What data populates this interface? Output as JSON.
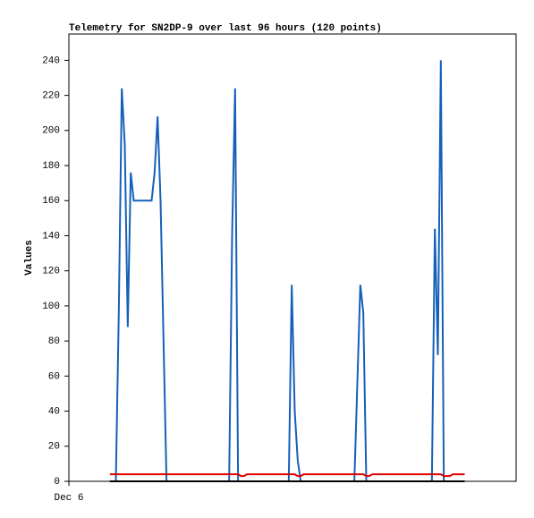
{
  "chart_data": {
    "type": "line",
    "title": "Telemetry for SN2DP-9 over last 96 hours (120 points)",
    "y_label": "Values",
    "xlim": [
      0,
      120
    ],
    "xticks": [
      {
        "value": 0,
        "label": "Dec 6"
      }
    ],
    "ylim": [
      0,
      255
    ],
    "yticks": [
      0,
      20,
      40,
      60,
      80,
      100,
      120,
      140,
      160,
      180,
      200,
      220,
      240
    ],
    "grid": false,
    "x": [
      11,
      11.8,
      12.6,
      13.4,
      14.2,
      15,
      15.8,
      16.6,
      17.4,
      18.2,
      19,
      19.8,
      20.6,
      21.4,
      22.2,
      23,
      23.8,
      24.6,
      25.4,
      26.2,
      27,
      27.8,
      28.6,
      29.4,
      30.2,
      31,
      31.8,
      32.6,
      33.4,
      34.2,
      35,
      35.8,
      36.6,
      37.4,
      38.2,
      39,
      39.8,
      40.6,
      41.4,
      42.2,
      43,
      43.8,
      44.6,
      45.4,
      46.2,
      47,
      47.8,
      48.6,
      49.4,
      50.2,
      51,
      51.8,
      52.6,
      53.4,
      54.2,
      55,
      55.8,
      56.6,
      57.4,
      58.2,
      59,
      59.8,
      60.6,
      61.4,
      62.2,
      63,
      63.8,
      64.6,
      65.4,
      66.2,
      67,
      67.8,
      68.6,
      69.4,
      70.2,
      71,
      71.8,
      72.6,
      73.4,
      74.2,
      75,
      75.8,
      76.6,
      77.4,
      78.2,
      79,
      79.8,
      80.6,
      81.4,
      82.2,
      83,
      83.8,
      84.6,
      85.4,
      86.2,
      87,
      87.8,
      88.6,
      89.4,
      90.2,
      91,
      91.8,
      92.6,
      93.4,
      94.2,
      95,
      95.8,
      96.6,
      97.4,
      98.2,
      99,
      99.8,
      100.6,
      101.4,
      102.2,
      103,
      103.8,
      104.6,
      105.4,
      106.2
    ],
    "series": [
      {
        "name": "blue",
        "color": "#1560b8",
        "values": [
          0,
          0,
          0,
          97,
          224,
          192,
          88,
          176,
          160,
          160,
          160,
          160,
          160,
          160,
          160,
          176,
          208,
          160,
          80,
          0,
          0,
          0,
          0,
          0,
          0,
          0,
          0,
          0,
          0,
          0,
          0,
          0,
          0,
          0,
          0,
          0,
          0,
          0,
          0,
          0,
          0,
          140,
          224,
          0,
          0,
          0,
          0,
          0,
          0,
          0,
          0,
          0,
          0,
          0,
          0,
          0,
          0,
          0,
          0,
          0,
          0,
          112,
          40,
          12,
          0,
          0,
          0,
          0,
          0,
          0,
          0,
          0,
          0,
          0,
          0,
          0,
          0,
          0,
          0,
          0,
          0,
          0,
          0,
          56,
          112,
          96,
          0,
          0,
          0,
          0,
          0,
          0,
          0,
          0,
          0,
          0,
          0,
          0,
          0,
          0,
          0,
          0,
          0,
          0,
          0,
          0,
          0,
          0,
          0,
          144,
          72,
          240,
          0,
          0,
          0,
          0,
          0,
          0,
          0,
          0
        ]
      },
      {
        "name": "red",
        "color": "#e00000",
        "values": [
          4,
          4,
          4,
          4,
          4,
          4,
          4,
          4,
          4,
          4,
          4,
          4,
          4,
          4,
          4,
          4,
          4,
          4,
          4,
          4,
          4,
          4,
          4,
          4,
          4,
          4,
          4,
          4,
          4,
          4,
          4,
          4,
          4,
          4,
          4,
          4,
          4,
          4,
          4,
          4,
          4,
          4,
          4,
          4,
          3,
          3,
          4,
          4,
          4,
          4,
          4,
          4,
          4,
          4,
          4,
          4,
          4,
          4,
          4,
          4,
          4,
          4,
          4,
          3,
          3,
          4,
          4,
          4,
          4,
          4,
          4,
          4,
          4,
          4,
          4,
          4,
          4,
          4,
          4,
          4,
          4,
          4,
          4,
          4,
          4,
          4,
          3,
          3,
          4,
          4,
          4,
          4,
          4,
          4,
          4,
          4,
          4,
          4,
          4,
          4,
          4,
          4,
          4,
          4,
          4,
          4,
          4,
          4,
          4,
          4,
          4,
          4,
          3,
          3,
          3,
          4,
          4,
          4,
          4,
          4
        ]
      },
      {
        "name": "black",
        "color": "#000000",
        "values": [
          0,
          0,
          0,
          0,
          0,
          0,
          0,
          0,
          0,
          0,
          0,
          0,
          0,
          0,
          0,
          0,
          0,
          0,
          0,
          0,
          0,
          0,
          0,
          0,
          0,
          0,
          0,
          0,
          0,
          0,
          0,
          0,
          0,
          0,
          0,
          0,
          0,
          0,
          0,
          0,
          0,
          0,
          0,
          0,
          0,
          0,
          0,
          0,
          0,
          0,
          0,
          0,
          0,
          0,
          0,
          0,
          0,
          0,
          0,
          0,
          0,
          0,
          0,
          0,
          0,
          0,
          0,
          0,
          0,
          0,
          0,
          0,
          0,
          0,
          0,
          0,
          0,
          0,
          0,
          0,
          0,
          0,
          0,
          0,
          0,
          0,
          0,
          0,
          0,
          0,
          0,
          0,
          0,
          0,
          0,
          0,
          0,
          0,
          0,
          0,
          0,
          0,
          0,
          0,
          0,
          0,
          0,
          0,
          0,
          0,
          0,
          0,
          0,
          0,
          0,
          0,
          0,
          0,
          0,
          0
        ]
      }
    ]
  }
}
